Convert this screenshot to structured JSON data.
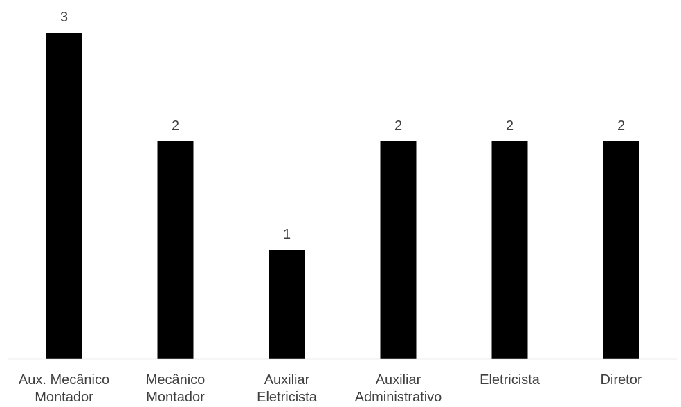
{
  "chart_data": {
    "type": "bar",
    "categories": [
      [
        "Aux. Mecânico",
        "Montador"
      ],
      [
        "Mecânico",
        "Montador"
      ],
      [
        "Auxiliar",
        "Eletricista"
      ],
      [
        "Auxiliar",
        "Administrativo"
      ],
      [
        "Eletricista"
      ],
      [
        "Diretor"
      ]
    ],
    "values": [
      3,
      2,
      1,
      2,
      2,
      2
    ],
    "data_labels": [
      "3",
      "2",
      "1",
      "2",
      "2",
      "2"
    ],
    "title": "",
    "xlabel": "",
    "ylabel": "",
    "ylim": [
      0,
      3
    ],
    "grid": false,
    "legend": "none",
    "colors": {
      "bar": "#000000",
      "axis": "#d9d9d9",
      "text": "#404040"
    }
  }
}
